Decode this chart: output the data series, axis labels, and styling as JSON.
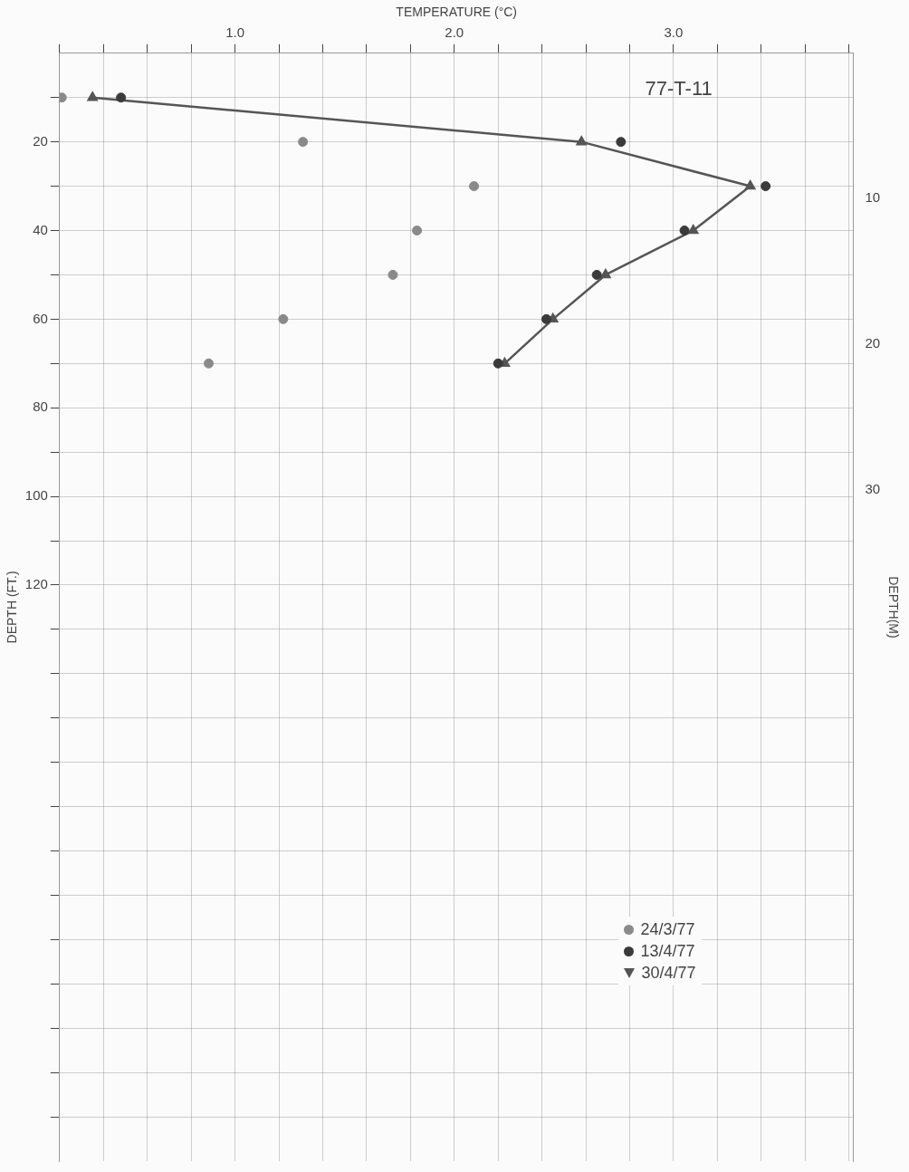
{
  "chart_data": {
    "type": "scatter",
    "title": "77-T-11",
    "xlabel": "TEMPERATURE (°C)",
    "ylabel": "DEPTH (FT.)",
    "y2label": "DEPTH(M)",
    "xlim": [
      0.2,
      3.82
    ],
    "xticks": [
      {
        "value": 0.2,
        "label": null
      },
      {
        "value": 0.4,
        "label": null
      },
      {
        "value": 0.6,
        "label": null
      },
      {
        "value": 0.8,
        "label": null
      },
      {
        "value": 1,
        "label": "1.0"
      },
      {
        "value": 1.2,
        "label": null
      },
      {
        "value": 1.4,
        "label": null
      },
      {
        "value": 1.6,
        "label": null
      },
      {
        "value": 1.8,
        "label": null
      },
      {
        "value": 2,
        "label": "2.0"
      },
      {
        "value": 2.2,
        "label": null
      },
      {
        "value": 2.4,
        "label": null
      },
      {
        "value": 2.6,
        "label": null
      },
      {
        "value": 2.8,
        "label": null
      },
      {
        "value": 3,
        "label": "3.0"
      },
      {
        "value": 3.2,
        "label": null
      },
      {
        "value": 3.4,
        "label": null
      },
      {
        "value": 3.6,
        "label": null
      },
      {
        "value": 3.8,
        "label": null
      }
    ],
    "ylim": [
      250,
      0
    ],
    "yticks": [
      {
        "value": 10,
        "label": null
      },
      20,
      {
        "value": 30,
        "label": null
      },
      40,
      {
        "value": 50,
        "label": null
      },
      60,
      {
        "value": 70,
        "label": null
      },
      80,
      {
        "value": 90,
        "label": null
      },
      100,
      {
        "value": 110,
        "label": null
      },
      120,
      {
        "value": 130,
        "label": null
      },
      {
        "value": 140,
        "label": null
      },
      {
        "value": 150,
        "label": null
      },
      {
        "value": 160,
        "label": null
      },
      {
        "value": 170,
        "label": null
      },
      {
        "value": 180,
        "label": null
      },
      {
        "value": 190,
        "label": null
      },
      {
        "value": 200,
        "label": null
      },
      {
        "value": 210,
        "label": null
      },
      {
        "value": 220,
        "label": null
      },
      {
        "value": 230,
        "label": null
      },
      {
        "value": 240,
        "label": null
      }
    ],
    "y2lim": [
      76.2,
      0
    ],
    "y2ticks": [
      10,
      20,
      30
    ],
    "grid": true,
    "legend": "bottom right",
    "series": [
      {
        "name": "24/3/77",
        "type": "scatter",
        "marker": "circle",
        "color": "#8a8a8a",
        "x": [
          0.21,
          1.31,
          2.09,
          1.83,
          1.72,
          1.22,
          0.88
        ],
        "values": [
          10,
          20,
          30,
          40,
          50,
          60,
          70
        ]
      },
      {
        "name": "13/4/77",
        "type": "scatter",
        "marker": "circle",
        "color": "#3a3a3a",
        "x": [
          0.48,
          2.76,
          3.42,
          3.05,
          2.65,
          2.42,
          2.2
        ],
        "values": [
          10,
          20,
          30,
          40,
          50,
          60,
          70
        ]
      },
      {
        "name": "30/4/77",
        "type": "line",
        "marker": "triangle",
        "color": "#555555",
        "x": [
          0.35,
          2.58,
          3.35,
          3.09,
          2.69,
          2.45,
          2.23
        ],
        "values": [
          10,
          20,
          30,
          40,
          50,
          60,
          70
        ]
      }
    ]
  }
}
